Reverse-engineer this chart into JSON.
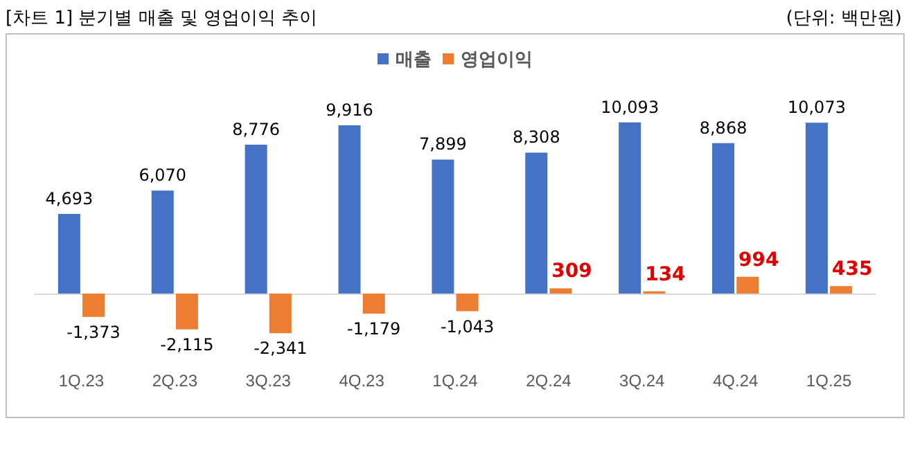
{
  "chart_data": {
    "type": "bar",
    "title": "[차트 1] 분기별 매출 및 영업이익 추이",
    "annotations": [
      "(단위: 백만원)"
    ],
    "categories": [
      "1Q.23",
      "2Q.23",
      "3Q.23",
      "4Q.23",
      "1Q.24",
      "2Q.24",
      "3Q.24",
      "4Q.24",
      "1Q.25"
    ],
    "series": [
      {
        "name": "매출",
        "color": "#4472c4",
        "values": [
          4693,
          6070,
          8776,
          9916,
          7899,
          8308,
          10093,
          8868,
          10073
        ],
        "value_labels": [
          "4,693",
          "6,070",
          "8,776",
          "9,916",
          "7,899",
          "8,308",
          "10,093",
          "8,868",
          "10,073"
        ]
      },
      {
        "name": "영업이익",
        "color": "#ed7d31",
        "values": [
          -1373,
          -2115,
          -2341,
          -1179,
          -1043,
          309,
          134,
          994,
          435
        ],
        "value_labels": [
          "-1,373",
          "-2,115",
          "-2,341",
          "-1,179",
          "-1,043",
          "309",
          "134",
          "994",
          "435"
        ]
      }
    ],
    "legend": "top"
  }
}
